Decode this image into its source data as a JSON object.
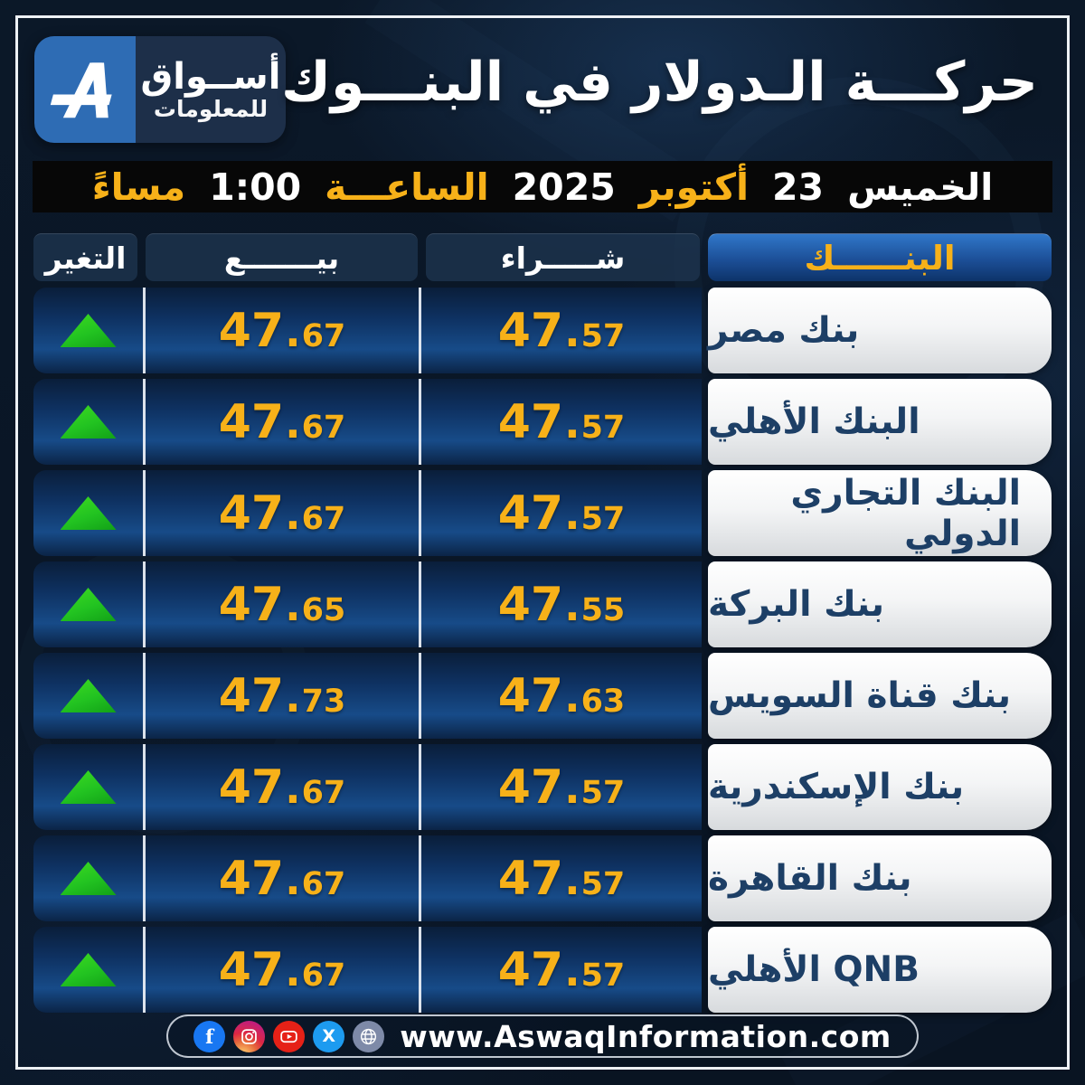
{
  "header": {
    "title": "حركـــة الـدولار في البنـــوك"
  },
  "logo": {
    "name_line1": "أســواق",
    "name_line2": "للمعلومات",
    "mark": "aswaq-a-monogram"
  },
  "datebar": {
    "segments": [
      {
        "text": "الخميس",
        "color": "#ffffff"
      },
      {
        "text": "23",
        "color": "#ffffff"
      },
      {
        "text": "أكتوبر",
        "color": "#f7b119"
      },
      {
        "text": "2025",
        "color": "#ffffff"
      },
      {
        "text": "الساعـــة",
        "color": "#f7b119"
      },
      {
        "text": "1:00",
        "color": "#ffffff"
      },
      {
        "text": "مساءً",
        "color": "#f7b119"
      }
    ]
  },
  "table": {
    "headers": {
      "bank": "البنــــــك",
      "buy": "شـــــراء",
      "sell": "بيـــــــع",
      "change": "التغير"
    },
    "rows": [
      {
        "bank": "بنك مصر",
        "buy": "47.57",
        "sell": "47.67",
        "change": "up"
      },
      {
        "bank": "البنك الأهلي",
        "buy": "47.57",
        "sell": "47.67",
        "change": "up"
      },
      {
        "bank": "البنك التجاري الدولي",
        "buy": "47.57",
        "sell": "47.67",
        "change": "up"
      },
      {
        "bank": "بنك البركة",
        "buy": "47.55",
        "sell": "47.65",
        "change": "up"
      },
      {
        "bank": "بنك قناة السويس",
        "buy": "47.63",
        "sell": "47.73",
        "change": "up"
      },
      {
        "bank": "بنك الإسكندرية",
        "buy": "47.57",
        "sell": "47.67",
        "change": "up"
      },
      {
        "bank": "بنك القاهرة",
        "buy": "47.57",
        "sell": "47.67",
        "change": "up"
      },
      {
        "bank": "QNB الأهلي",
        "buy": "47.57",
        "sell": "47.67",
        "change": "up"
      }
    ]
  },
  "footer": {
    "url": "www.AswaqInformation.com",
    "social_icons": [
      "facebook-icon",
      "instagram-icon",
      "youtube-icon",
      "x-icon",
      "globe-icon"
    ]
  },
  "colors": {
    "accent_yellow": "#f7b119",
    "up_green": "#22c321",
    "bank_text": "#1d3f66",
    "row_blue_top": "#0a1e3a",
    "row_blue_mid": "#174b88",
    "header_bank_blue": "#1c4f97",
    "date_bar_bg": "#070707"
  },
  "chart_data": {
    "type": "table",
    "title": "حركـــة الـدولار في البنـــوك",
    "datetime": "الخميس 23 أكتوبر 2025 الساعة 1:00 مساءً",
    "columns": [
      "البنك",
      "شراء (Buy)",
      "بيع (Sell)",
      "التغير"
    ],
    "rows": [
      {
        "bank": "بنك مصر",
        "buy": 47.57,
        "sell": 47.67,
        "change": "up"
      },
      {
        "bank": "البنك الأهلي",
        "buy": 47.57,
        "sell": 47.67,
        "change": "up"
      },
      {
        "bank": "البنك التجاري الدولي",
        "buy": 47.57,
        "sell": 47.67,
        "change": "up"
      },
      {
        "bank": "بنك البركة",
        "buy": 47.55,
        "sell": 47.65,
        "change": "up"
      },
      {
        "bank": "بنك قناة السويس",
        "buy": 47.63,
        "sell": 47.73,
        "change": "up"
      },
      {
        "bank": "بنك الإسكندرية",
        "buy": 47.57,
        "sell": 47.67,
        "change": "up"
      },
      {
        "bank": "بنك القاهرة",
        "buy": 47.57,
        "sell": 47.67,
        "change": "up"
      },
      {
        "bank": "QNB الأهلي",
        "buy": 47.57,
        "sell": 47.67,
        "change": "up"
      }
    ]
  }
}
